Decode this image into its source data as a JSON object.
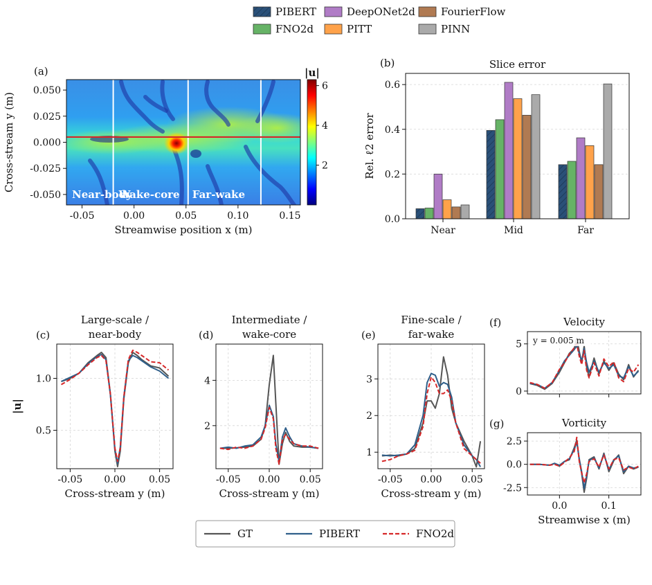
{
  "legend_top": [
    {
      "name": "PIBERT",
      "color": "#2a5078",
      "hatch": true
    },
    {
      "name": "DeepONet2d",
      "color": "#b07cc6"
    },
    {
      "name": "FourierFlow",
      "color": "#b07a52"
    },
    {
      "name": "FNO2d",
      "color": "#66b366"
    },
    {
      "name": "PITT",
      "color": "#ffa24a"
    },
    {
      "name": "PINN",
      "color": "#aaaaaa"
    }
  ],
  "legend_bottom": [
    {
      "name": "GT",
      "color": "#555555",
      "dash": false
    },
    {
      "name": "PIBERT",
      "color": "#2f5f8a",
      "dash": false
    },
    {
      "name": "FNO2d",
      "color": "#d62728",
      "dash": true
    }
  ],
  "colorbar": {
    "label": "|u|",
    "ticks": [
      2,
      4,
      6
    ],
    "range": [
      0,
      6.3
    ]
  },
  "chart_data": [
    {
      "id": "a",
      "panel_label": "(a)",
      "type": "heatmap",
      "title": "",
      "xlabel": "Streamwise position x (m)",
      "ylabel": "Cross-stream y (m)",
      "xlim": [
        -0.065,
        0.16
      ],
      "ylim": [
        -0.06,
        0.06
      ],
      "xticks": [
        -0.05,
        0.0,
        0.05,
        0.1,
        0.15
      ],
      "xtick_labels": [
        "-0.05",
        "0.00",
        "0.05",
        "0.10",
        "0.15"
      ],
      "yticks": [
        0.05,
        0.025,
        0.0,
        -0.025,
        -0.05
      ],
      "ytick_labels": [
        "0.050",
        "0.025",
        "0.000",
        "-0.025",
        "-0.050"
      ],
      "slice_x": [
        -0.02,
        0.052,
        0.122
      ],
      "hline_y": 0.005,
      "region_labels": [
        "Near-body",
        "Wake-core",
        "Far-wake"
      ]
    },
    {
      "id": "b",
      "panel_label": "(b)",
      "type": "bar",
      "title": "Slice error",
      "xlabel": "",
      "ylabel": "Rel. ℓ2 error",
      "categories": [
        "Near",
        "Mid",
        "Far"
      ],
      "ylim": [
        0,
        0.65
      ],
      "yticks": [
        0.0,
        0.2,
        0.4,
        0.6
      ],
      "ytick_labels": [
        "0.0",
        "0.2",
        "0.4",
        "0.6"
      ],
      "series": [
        {
          "name": "PIBERT",
          "values": [
            0.045,
            0.395,
            0.242
          ]
        },
        {
          "name": "FNO2d",
          "values": [
            0.048,
            0.443,
            0.257
          ]
        },
        {
          "name": "DeepONet2d",
          "values": [
            0.2,
            0.61,
            0.362
          ]
        },
        {
          "name": "PITT",
          "values": [
            0.085,
            0.537,
            0.327
          ]
        },
        {
          "name": "FourierFlow",
          "values": [
            0.053,
            0.463,
            0.242
          ]
        },
        {
          "name": "PINN",
          "values": [
            0.062,
            0.555,
            0.603
          ]
        }
      ]
    },
    {
      "id": "c",
      "panel_label": "(c)",
      "type": "line",
      "title": "Large-scale /",
      "title2": "near-body",
      "xlabel": "Cross-stream y (m)",
      "ylabel": "|u|",
      "xlim": [
        -0.065,
        0.065
      ],
      "ylim": [
        0.13,
        1.33
      ],
      "xticks": [
        -0.05,
        0.0,
        0.05
      ],
      "xtick_labels": [
        "-0.05",
        "0.00",
        "0.05"
      ],
      "yticks": [
        0.5,
        1.0
      ],
      "ytick_labels": [
        "0.5",
        "1.0"
      ],
      "x": [
        -0.06,
        -0.05,
        -0.04,
        -0.03,
        -0.02,
        -0.015,
        -0.01,
        -0.005,
        0.0,
        0.003,
        0.006,
        0.01,
        0.015,
        0.02,
        0.025,
        0.03,
        0.04,
        0.05,
        0.06
      ],
      "series": [
        {
          "name": "GT",
          "values": [
            0.97,
            1.0,
            1.05,
            1.15,
            1.22,
            1.25,
            1.2,
            0.85,
            0.3,
            0.15,
            0.3,
            0.8,
            1.15,
            1.25,
            1.22,
            1.18,
            1.12,
            1.1,
            1.02
          ]
        },
        {
          "name": "PIBERT",
          "values": [
            0.97,
            1.01,
            1.05,
            1.14,
            1.21,
            1.23,
            1.18,
            0.84,
            0.32,
            0.18,
            0.34,
            0.82,
            1.17,
            1.22,
            1.2,
            1.17,
            1.11,
            1.07,
            1.0
          ]
        },
        {
          "name": "FNO2d",
          "values": [
            0.94,
            0.99,
            1.05,
            1.13,
            1.2,
            1.22,
            1.17,
            0.85,
            0.33,
            0.2,
            0.33,
            0.82,
            1.18,
            1.27,
            1.25,
            1.22,
            1.16,
            1.15,
            1.08
          ]
        }
      ]
    },
    {
      "id": "d",
      "panel_label": "(d)",
      "type": "line",
      "title": "Intermediate /",
      "title2": "wake-core",
      "xlabel": "Cross-stream y (m)",
      "ylabel": "",
      "xlim": [
        -0.065,
        0.065
      ],
      "ylim": [
        0.1,
        5.6
      ],
      "xticks": [
        -0.05,
        0.0,
        0.05
      ],
      "xtick_labels": [
        "-0.05",
        "0.00",
        "0.05"
      ],
      "yticks": [
        2,
        4
      ],
      "ytick_labels": [
        "2",
        "4"
      ],
      "x": [
        -0.06,
        -0.05,
        -0.04,
        -0.03,
        -0.02,
        -0.01,
        -0.005,
        0.0,
        0.005,
        0.008,
        0.012,
        0.016,
        0.02,
        0.025,
        0.03,
        0.04,
        0.05,
        0.06
      ],
      "series": [
        {
          "name": "GT",
          "values": [
            1.0,
            1.0,
            1.02,
            1.05,
            1.1,
            1.4,
            2.0,
            3.8,
            5.1,
            3.0,
            0.3,
            1.2,
            1.7,
            1.3,
            1.1,
            1.05,
            1.05,
            1.0
          ]
        },
        {
          "name": "PIBERT",
          "values": [
            1.0,
            1.05,
            1.0,
            1.1,
            1.15,
            1.5,
            2.0,
            2.9,
            2.4,
            1.2,
            0.4,
            1.5,
            1.9,
            1.5,
            1.2,
            1.1,
            1.05,
            1.0
          ]
        },
        {
          "name": "FNO2d",
          "values": [
            1.0,
            0.95,
            1.05,
            1.0,
            1.1,
            1.4,
            1.9,
            2.8,
            2.3,
            1.0,
            0.3,
            1.4,
            1.6,
            1.4,
            1.2,
            1.1,
            1.1,
            1.0
          ]
        }
      ]
    },
    {
      "id": "e",
      "panel_label": "(e)",
      "type": "line",
      "title": "Fine-scale /",
      "title2": "far-wake",
      "xlabel": "Cross-stream y (m)",
      "ylabel": "",
      "xlim": [
        -0.065,
        0.065
      ],
      "ylim": [
        0.55,
        3.95
      ],
      "xticks": [
        -0.05,
        0.0,
        0.05
      ],
      "xtick_labels": [
        "-0.05",
        "0.00",
        "0.05"
      ],
      "yticks": [
        1,
        2,
        3
      ],
      "ytick_labels": [
        "1",
        "2",
        "3"
      ],
      "x": [
        -0.06,
        -0.05,
        -0.04,
        -0.03,
        -0.02,
        -0.01,
        -0.005,
        0.0,
        0.005,
        0.01,
        0.015,
        0.02,
        0.025,
        0.03,
        0.04,
        0.05,
        0.055,
        0.06
      ],
      "series": [
        {
          "name": "GT",
          "values": [
            0.9,
            0.92,
            0.9,
            0.95,
            1.1,
            1.8,
            2.4,
            2.4,
            2.2,
            2.6,
            3.6,
            3.1,
            2.2,
            1.8,
            1.3,
            0.9,
            0.6,
            1.3
          ]
        },
        {
          "name": "PIBERT",
          "values": [
            0.92,
            0.9,
            0.92,
            0.95,
            1.2,
            2.0,
            2.9,
            3.15,
            3.1,
            2.8,
            2.9,
            2.85,
            2.5,
            1.8,
            1.2,
            0.9,
            0.8,
            0.6
          ]
        },
        {
          "name": "FNO2d",
          "values": [
            0.75,
            0.8,
            0.9,
            0.95,
            1.05,
            1.7,
            2.6,
            3.05,
            2.9,
            2.6,
            2.6,
            2.7,
            2.4,
            1.8,
            1.1,
            0.9,
            0.8,
            0.7
          ]
        }
      ]
    },
    {
      "id": "f",
      "panel_label": "(f)",
      "type": "line",
      "title": "Velocity",
      "annotation": "y = 0.005 m",
      "xlabel": "",
      "ylabel": "",
      "xlim": [
        -0.065,
        0.165
      ],
      "ylim": [
        -0.3,
        6.3
      ],
      "xticks": [
        0.0,
        0.1
      ],
      "xtick_labels": [],
      "yticks": [
        0,
        5
      ],
      "ytick_labels": [
        "0",
        "5"
      ],
      "x": [
        -0.06,
        -0.045,
        -0.03,
        -0.015,
        0.0,
        0.01,
        0.02,
        0.03,
        0.035,
        0.04,
        0.045,
        0.05,
        0.055,
        0.06,
        0.07,
        0.08,
        0.09,
        0.1,
        0.11,
        0.12,
        0.13,
        0.14,
        0.15,
        0.16
      ],
      "series": [
        {
          "name": "GT",
          "values": [
            0.8,
            0.6,
            0.2,
            0.8,
            2.0,
            3.0,
            4.0,
            4.5,
            5.6,
            4.2,
            3.0,
            4.8,
            2.5,
            1.5,
            3.5,
            1.8,
            3.2,
            2.2,
            3.0,
            1.8,
            1.2,
            2.8,
            1.5,
            2.2
          ]
        },
        {
          "name": "PIBERT",
          "values": [
            0.8,
            0.7,
            0.3,
            0.9,
            2.2,
            3.2,
            3.8,
            4.4,
            4.8,
            4.0,
            3.2,
            4.5,
            3.0,
            2.0,
            3.2,
            2.0,
            3.0,
            2.4,
            2.8,
            1.6,
            1.4,
            2.6,
            1.6,
            2.1
          ]
        },
        {
          "name": "FNO2d",
          "values": [
            0.9,
            0.7,
            0.3,
            0.9,
            2.3,
            3.0,
            3.9,
            4.6,
            5.0,
            3.7,
            2.8,
            4.3,
            2.2,
            1.4,
            3.0,
            1.6,
            3.4,
            2.6,
            3.1,
            1.4,
            1.0,
            2.4,
            2.0,
            2.8
          ]
        }
      ]
    },
    {
      "id": "g",
      "panel_label": "(g)",
      "type": "line",
      "title": "Vorticity",
      "xlabel": "Streamwise x (m)",
      "ylabel": "",
      "xlim": [
        -0.065,
        0.165
      ],
      "ylim": [
        -3.3,
        3.4
      ],
      "xticks": [
        0.0,
        0.1
      ],
      "xtick_labels": [
        "0.0",
        "0.1"
      ],
      "yticks": [
        2.5,
        0.0,
        -2.5
      ],
      "ytick_labels": [
        "2.5",
        "0.0",
        "-2.5"
      ],
      "x": [
        -0.06,
        -0.04,
        -0.02,
        -0.01,
        0.0,
        0.01,
        0.02,
        0.03,
        0.035,
        0.04,
        0.045,
        0.05,
        0.055,
        0.06,
        0.07,
        0.08,
        0.09,
        0.1,
        0.11,
        0.12,
        0.13,
        0.14,
        0.15,
        0.16
      ],
      "series": [
        {
          "name": "GT",
          "values": [
            0.0,
            0.0,
            -0.1,
            0.1,
            -0.2,
            0.3,
            0.5,
            1.8,
            2.6,
            0.5,
            -1.0,
            -3.0,
            -1.5,
            0.5,
            0.8,
            -0.5,
            1.2,
            -0.8,
            0.4,
            1.0,
            -1.0,
            -0.2,
            -0.5,
            -0.3
          ]
        },
        {
          "name": "PIBERT",
          "values": [
            0.0,
            0.0,
            -0.1,
            0.1,
            -0.1,
            0.3,
            0.6,
            1.6,
            2.4,
            0.6,
            -0.8,
            -2.6,
            -1.2,
            0.4,
            0.7,
            -0.4,
            1.1,
            -0.6,
            0.5,
            0.9,
            -0.8,
            -0.2,
            -0.4,
            -0.3
          ]
        },
        {
          "name": "FNO2d",
          "values": [
            0.0,
            0.0,
            -0.1,
            0.0,
            -0.2,
            0.2,
            0.7,
            1.4,
            2.9,
            0.3,
            -0.9,
            -2.0,
            -1.0,
            0.3,
            0.6,
            -0.3,
            1.0,
            -0.5,
            0.5,
            0.7,
            -0.6,
            -0.3,
            -0.5,
            -0.2
          ]
        }
      ]
    }
  ]
}
